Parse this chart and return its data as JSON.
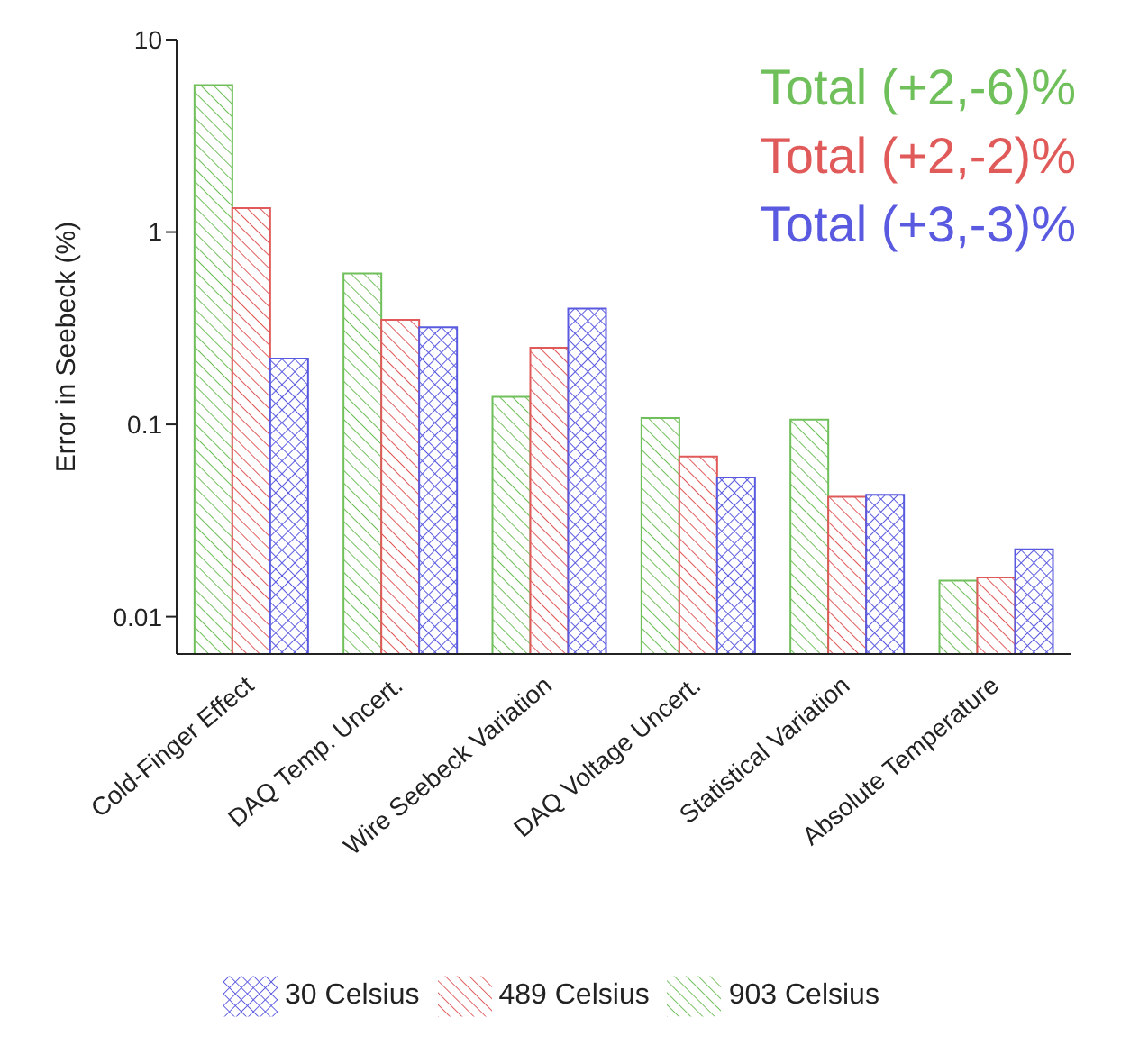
{
  "chart_data": {
    "type": "bar",
    "ylabel": "Error in Seebeck (%)",
    "categories": [
      "Cold-Finger Effect",
      "DAQ Temp. Uncert.",
      "Wire Seebeck Variation",
      "DAQ Voltage Uncert.",
      "Statistical Variation",
      "Absolute Temperature"
    ],
    "series": [
      {
        "name": "903 Celsius",
        "color": "#6fbf5a",
        "values": [
          5.8,
          0.61,
          0.139,
          0.108,
          0.106,
          0.0154
        ]
      },
      {
        "name": "489 Celsius",
        "color": "#e05a5a",
        "values": [
          1.33,
          0.35,
          0.25,
          0.068,
          0.042,
          0.016
        ]
      },
      {
        "name": "30 Celsius",
        "color": "#5a5ae0",
        "values": [
          0.22,
          0.32,
          0.4,
          0.053,
          0.043,
          0.0224
        ]
      }
    ],
    "log": true,
    "ylim": [
      0.0064,
      10
    ],
    "yticks": [
      0.01,
      0.1,
      1,
      10
    ],
    "grid": false,
    "legend": "bottom",
    "annotations": [
      "Total (+2,-6)%",
      "Total (+2,-2)%",
      "Total (+3,-3)%"
    ]
  }
}
